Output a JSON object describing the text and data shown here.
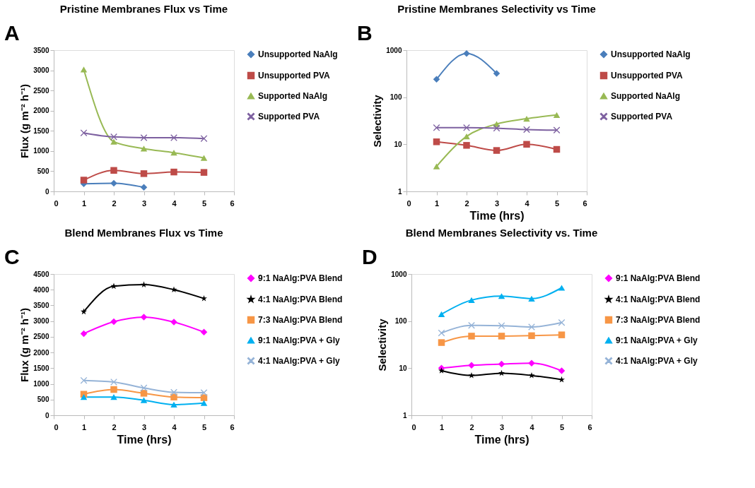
{
  "chart_data": [
    {
      "type": "line",
      "title": "Pristine Membranes Flux vs Time",
      "ylabel": "Flux (g m⁻² h⁻¹)",
      "annotations": [
        "A"
      ],
      "x": [
        1,
        2,
        3,
        4,
        5
      ],
      "xlim": [
        0,
        6
      ],
      "xticks": [
        0,
        1,
        2,
        3,
        4,
        5,
        6
      ],
      "ylim": [
        0,
        3500
      ],
      "yticks": [
        0,
        500,
        1000,
        1500,
        2000,
        2500,
        3000,
        3500
      ],
      "grid": false,
      "legend": "right",
      "line_style": "solid",
      "series": [
        {
          "name": "Unsupported NaAlg",
          "color": "#4a7ebb",
          "marker": "diamond",
          "values": [
            190,
            200,
            100,
            null,
            null
          ]
        },
        {
          "name": "Unsupported PVA",
          "color": "#be4b48",
          "marker": "square",
          "values": [
            280,
            520,
            440,
            480,
            470
          ]
        },
        {
          "name": "Supported NaAlg",
          "color": "#98b954",
          "marker": "triangle",
          "values": [
            3020,
            1230,
            1060,
            960,
            830
          ]
        },
        {
          "name": "Supported PVA",
          "color": "#7d60a0",
          "marker": "cross",
          "values": [
            1450,
            1350,
            1330,
            1330,
            1310
          ]
        }
      ]
    },
    {
      "type": "line",
      "title": "Pristine Membranes Selectivity vs Time",
      "xlabel": "Time (hrs)",
      "ylabel": "Selectivity",
      "annotations": [
        "B"
      ],
      "x": [
        1,
        2,
        3,
        4,
        5
      ],
      "xlim": [
        0,
        6
      ],
      "xticks": [
        0,
        1,
        2,
        3,
        4,
        5,
        6
      ],
      "ylim": [
        1,
        1000
      ],
      "yticks": [
        1,
        10,
        100,
        1000
      ],
      "log": true,
      "grid": false,
      "legend": "right",
      "line_style": "solid",
      "series": [
        {
          "name": "Unsupported NaAlg",
          "color": "#4a7ebb",
          "marker": "diamond",
          "values": [
            240,
            850,
            320,
            null,
            null
          ]
        },
        {
          "name": "Unsupported PVA",
          "color": "#be4b48",
          "marker": "square",
          "values": [
            11.3,
            9.5,
            7.4,
            10,
            7.8
          ]
        },
        {
          "name": "Supported NaAlg",
          "color": "#98b954",
          "marker": "triangle",
          "values": [
            3.4,
            14.7,
            27,
            35,
            42
          ]
        },
        {
          "name": "Supported PVA",
          "color": "#7d60a0",
          "marker": "cross",
          "values": [
            22.5,
            22.5,
            22,
            20.5,
            20
          ]
        }
      ]
    },
    {
      "type": "line",
      "title": "Blend Membranes Flux vs Time",
      "xlabel": "Time (hrs)",
      "ylabel": "Flux (g m⁻² h⁻¹)",
      "annotations": [
        "C"
      ],
      "x": [
        1,
        2,
        3,
        4,
        5
      ],
      "xlim": [
        0,
        6
      ],
      "xticks": [
        0,
        1,
        2,
        3,
        4,
        5,
        6
      ],
      "ylim": [
        0,
        4500
      ],
      "yticks": [
        0,
        500,
        1000,
        1500,
        2000,
        2500,
        3000,
        3500,
        4000,
        4500
      ],
      "grid": false,
      "legend": "right",
      "line_style": "solid",
      "series": [
        {
          "name": "9:1 NaAlg:PVA Blend",
          "color": "#ff00ff",
          "marker": "diamond",
          "values": [
            2600,
            2980,
            3130,
            2970,
            2650
          ]
        },
        {
          "name": "4:1 NaAlg:PVA Blend",
          "color": "#000000",
          "marker": "star",
          "values": [
            3300,
            4110,
            4160,
            4000,
            3720
          ]
        },
        {
          "name": "7:3 NaAlg:PVA Blend",
          "color": "#f79646",
          "marker": "square",
          "values": [
            670,
            820,
            700,
            580,
            560
          ]
        },
        {
          "name": "9:1 NaAlg:PVA + Gly",
          "color": "#00b0f0",
          "marker": "triangle",
          "values": [
            580,
            580,
            480,
            340,
            390
          ]
        },
        {
          "name": "4:1 NaAlg:PVA + Gly",
          "color": "#95b3d7",
          "marker": "cross",
          "values": [
            1110,
            1060,
            870,
            730,
            720
          ]
        }
      ]
    },
    {
      "type": "line",
      "title": "Blend Membranes Selectivity vs. Time",
      "xlabel": "Time (hrs)",
      "ylabel": "Selectivity",
      "annotations": [
        "D"
      ],
      "x": [
        1,
        2,
        3,
        4,
        5
      ],
      "xlim": [
        0,
        6
      ],
      "xticks": [
        0,
        1,
        2,
        3,
        4,
        5,
        6
      ],
      "ylim": [
        1,
        1000
      ],
      "yticks": [
        1,
        10,
        100,
        1000
      ],
      "log": true,
      "grid": false,
      "legend": "right",
      "line_style": "solid",
      "series": [
        {
          "name": "9:1 NaAlg:PVA Blend",
          "color": "#ff00ff",
          "marker": "diamond",
          "values": [
            10,
            11.5,
            12.2,
            12.8,
            8.8
          ]
        },
        {
          "name": "4:1 NaAlg:PVA Blend",
          "color": "#000000",
          "marker": "star",
          "values": [
            8.8,
            7,
            7.8,
            7,
            5.7
          ]
        },
        {
          "name": "7:3 NaAlg:PVA Blend",
          "color": "#f79646",
          "marker": "square",
          "values": [
            35,
            48,
            48,
            49,
            51
          ]
        },
        {
          "name": "9:1 NaAlg:PVA + Gly",
          "color": "#00b0f0",
          "marker": "triangle",
          "values": [
            140,
            280,
            340,
            300,
            510
          ]
        },
        {
          "name": "4:1 NaAlg:PVA + Gly",
          "color": "#95b3d7",
          "marker": "cross",
          "values": [
            56,
            81,
            80,
            75,
            93
          ]
        }
      ]
    }
  ]
}
